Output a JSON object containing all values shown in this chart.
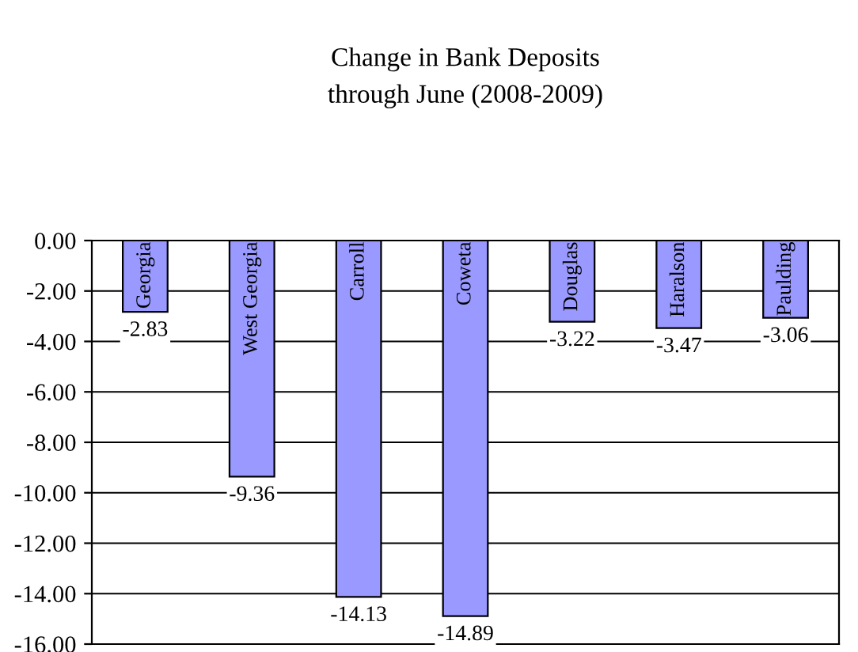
{
  "chart_data": {
    "type": "bar",
    "title": "Change in Bank Deposits\nthrough June (2008-2009)",
    "categories": [
      "Georgia",
      "West Georgia",
      "Carroll",
      "Coweta",
      "Douglas",
      "Haralson",
      "Paulding"
    ],
    "values": [
      -2.83,
      -9.36,
      -14.13,
      -14.89,
      -3.22,
      -3.47,
      -3.06
    ],
    "color": "#9999ff",
    "data_labels": true,
    "grid": "y",
    "ylim": [
      -16,
      0
    ],
    "yticks": [
      {
        "value": 0,
        "label": "0.00"
      },
      {
        "value": -2,
        "label": "-2.00"
      },
      {
        "value": -4,
        "label": "-4.00"
      },
      {
        "value": -6,
        "label": "-6.00"
      },
      {
        "value": -8,
        "label": "-8.00"
      },
      {
        "value": -10,
        "label": "-10.00"
      },
      {
        "value": -12,
        "label": "-12.00"
      },
      {
        "value": -14,
        "label": "-14.00"
      },
      {
        "value": -16,
        "label": "-16.00"
      }
    ]
  }
}
